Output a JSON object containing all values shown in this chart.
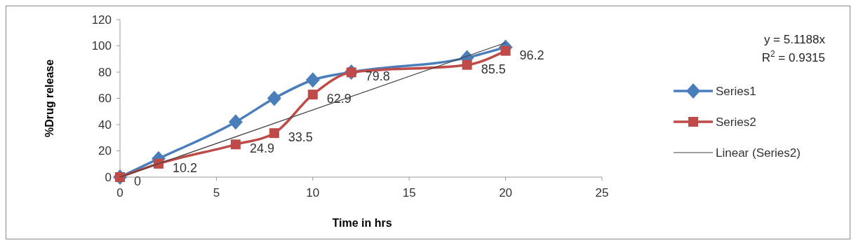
{
  "chart_data": {
    "type": "line",
    "xlabel": "Time in hrs",
    "ylabel": "%Drug release",
    "x": [
      0,
      2,
      6,
      8,
      10,
      12,
      18,
      20
    ],
    "series": [
      {
        "name": "Series1",
        "color": "#4a7ebb",
        "marker": "diamond",
        "values": [
          0,
          14,
          42,
          60,
          74,
          80,
          91,
          99
        ]
      },
      {
        "name": "Series2",
        "color": "#be4b48",
        "marker": "square",
        "values": [
          0,
          10.2,
          24.9,
          33.5,
          62.9,
          79.8,
          85.5,
          96.2
        ],
        "value_labels": [
          "0",
          "10.2",
          "24.9",
          "33.5",
          "62.9",
          "79.8",
          "85.5",
          "96.2"
        ]
      },
      {
        "name": "Linear (Series2)",
        "color": "#404040",
        "marker": "none",
        "x": [
          0,
          20
        ],
        "values": [
          0,
          102.4
        ]
      }
    ],
    "xlim": [
      0,
      25
    ],
    "xticks": [
      0,
      5,
      10,
      15,
      20,
      25
    ],
    "ylim": [
      0,
      120
    ],
    "yticks": [
      0,
      20,
      40,
      60,
      80,
      100,
      120
    ],
    "grid": false,
    "legend": "right",
    "annotations": [
      "y = 5.1188x",
      "R$^{2}$ = 0.9315"
    ]
  }
}
